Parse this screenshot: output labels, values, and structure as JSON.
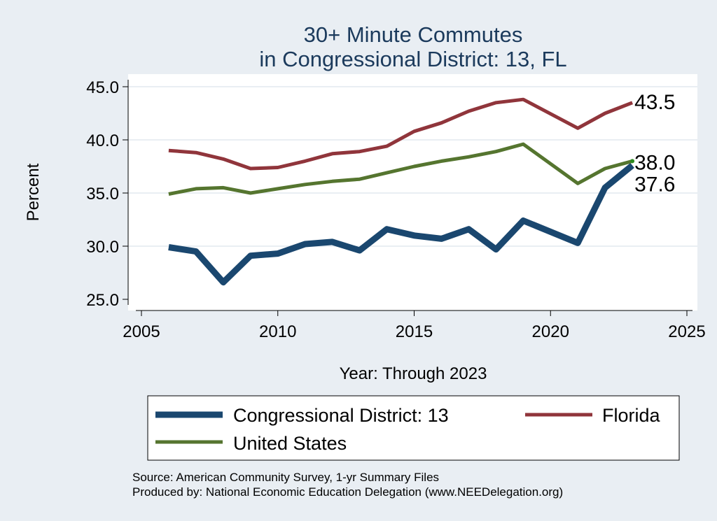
{
  "chart_data": {
    "type": "line",
    "title": [
      "30+ Minute Commutes",
      "in Congressional District:  13, FL"
    ],
    "xlabel": "Year: Through 2023",
    "ylabel": "Percent",
    "xlim": [
      2005,
      2025
    ],
    "ylim": [
      25,
      45
    ],
    "xticks": [
      2005,
      2010,
      2015,
      2020,
      2025
    ],
    "xtick_labels": [
      "2005",
      "2010",
      "2015",
      "2020",
      "2025"
    ],
    "yticks": [
      25,
      30,
      35,
      40,
      45
    ],
    "ytick_labels": [
      "25.0",
      "30.0",
      "35.0",
      "40.0",
      "45.0"
    ],
    "grid": true,
    "legend_position": "bottom",
    "x": [
      2006,
      2007,
      2008,
      2009,
      2010,
      2011,
      2012,
      2013,
      2014,
      2015,
      2016,
      2017,
      2018,
      2019,
      2021,
      2022,
      2023
    ],
    "series": [
      {
        "name": "Congressional District:  13",
        "color": "#1a476f",
        "width": 9,
        "end_label": "37.6",
        "values": [
          29.9,
          29.5,
          26.6,
          29.1,
          29.3,
          30.2,
          30.4,
          29.6,
          31.6,
          31.0,
          30.7,
          31.6,
          29.7,
          32.4,
          30.3,
          35.5,
          37.6
        ]
      },
      {
        "name": "Florida",
        "color": "#90353b",
        "width": 5,
        "end_label": "43.5",
        "values": [
          39.0,
          38.8,
          38.2,
          37.3,
          37.4,
          38.0,
          38.7,
          38.9,
          39.4,
          40.8,
          41.6,
          42.7,
          43.5,
          43.8,
          41.1,
          42.5,
          43.5
        ]
      },
      {
        "name": "United States",
        "color": "#55752f",
        "width": 5,
        "end_label": "38.0",
        "values": [
          34.9,
          35.4,
          35.5,
          35.0,
          35.4,
          35.8,
          36.1,
          36.3,
          36.9,
          37.5,
          38.0,
          38.4,
          38.9,
          39.6,
          35.9,
          37.3,
          38.0
        ]
      }
    ],
    "legend": [
      {
        "label": "Congressional District:  13",
        "series": 0
      },
      {
        "label": "Florida",
        "series": 1
      },
      {
        "label": "United States",
        "series": 2
      }
    ]
  },
  "source_lines": [
    "Source: American Community Survey, 1-yr Summary Files",
    "Produced by: National Economic Education Delegation (www.NEEDelegation.org)"
  ]
}
